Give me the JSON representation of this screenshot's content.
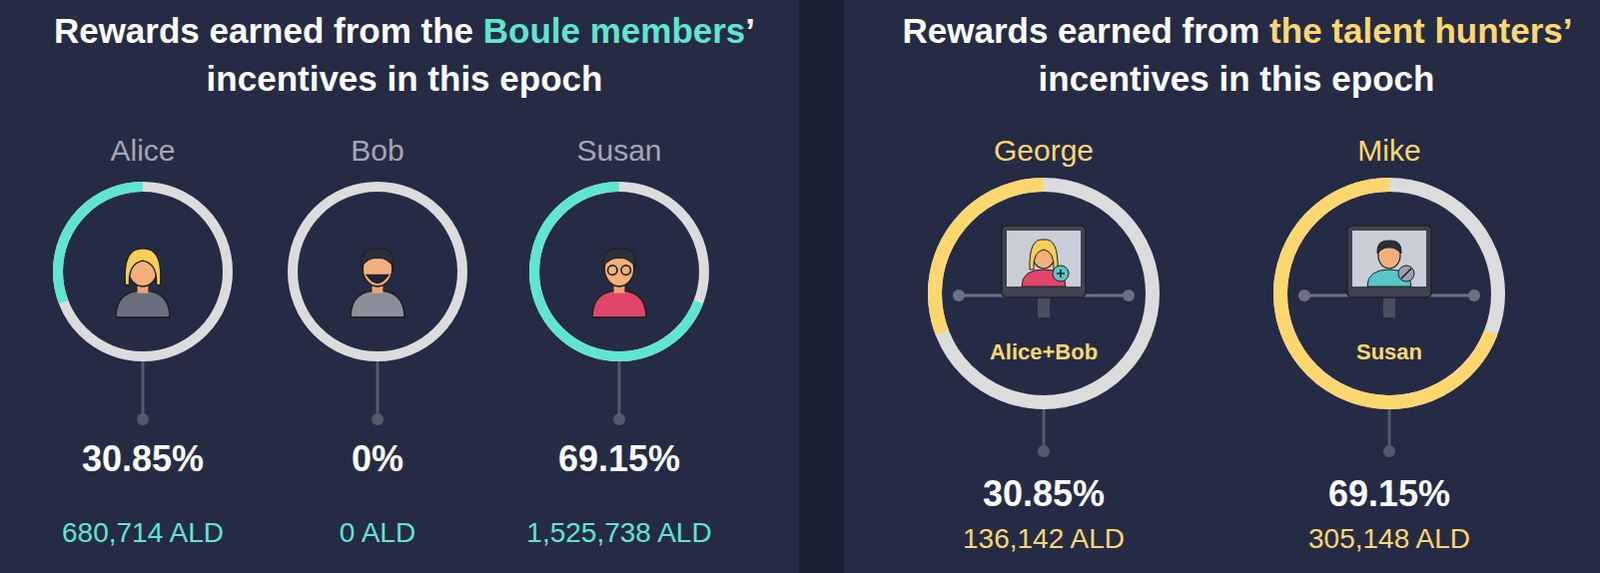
{
  "chart_data": [
    {
      "type": "donut",
      "title": [
        "Rewards earned from the ",
        "Boule members",
        "’ incentives in this epoch"
      ],
      "categories": [
        "Alice",
        "Bob",
        "Susan"
      ],
      "values": [
        30.85,
        0,
        69.15
      ],
      "value_labels": [
        "30.85%",
        "0%",
        "69.15%"
      ],
      "amounts": [
        680714,
        0,
        1525738
      ],
      "amount_labels": [
        "680,714 ALD",
        "0 ALD",
        "1,525,738 ALD"
      ],
      "color": "#5ee6cf",
      "data_labels": true
    },
    {
      "type": "donut",
      "title": [
        "Rewards earned from ",
        "the talent hunters’",
        " incentives in this epoch"
      ],
      "categories": [
        "George",
        "Mike"
      ],
      "inner_labels": [
        "Alice+Bob",
        "Susan"
      ],
      "values": [
        30.85,
        69.15
      ],
      "value_labels": [
        "30.85%",
        "69.15%"
      ],
      "amounts": [
        136142,
        305148
      ],
      "amount_labels": [
        "136,142 ALD",
        "305,148 ALD"
      ],
      "color": "#fdd76e",
      "data_labels": true
    }
  ]
}
